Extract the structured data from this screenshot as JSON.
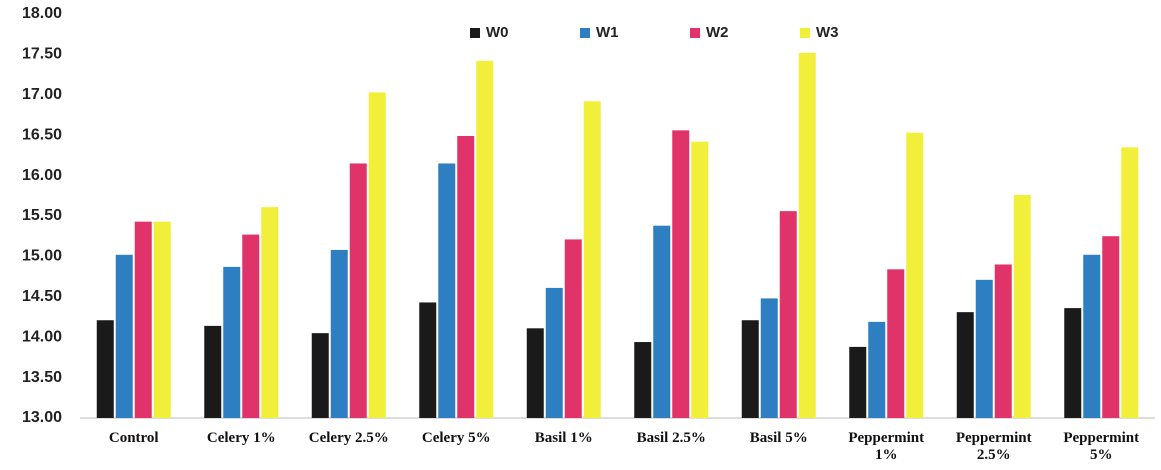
{
  "chart_data": {
    "type": "bar",
    "categories": [
      "Control",
      "Celery 1%",
      "Celery 2.5%",
      "Celery 5%",
      "Basil 1%",
      "Basil 2.5%",
      "Basil 5%",
      "Peppermint 1%",
      "Peppermint 2.5%",
      "Peppermint 5%"
    ],
    "series": [
      {
        "name": "W0",
        "color": "#1a1a1a",
        "values": [
          14.21,
          14.14,
          14.05,
          14.43,
          14.11,
          13.94,
          14.21,
          13.88,
          14.31,
          14.36
        ]
      },
      {
        "name": "W1",
        "color": "#2e7fc1",
        "values": [
          15.02,
          14.87,
          15.08,
          16.15,
          14.61,
          15.38,
          14.48,
          14.19,
          14.71,
          15.02
        ]
      },
      {
        "name": "W2",
        "color": "#e0336a",
        "values": [
          15.43,
          15.27,
          16.15,
          16.49,
          15.21,
          16.56,
          15.56,
          14.84,
          14.9,
          15.25
        ]
      },
      {
        "name": "W3",
        "color": "#f2ef3a",
        "values": [
          15.43,
          15.61,
          17.03,
          17.42,
          16.92,
          16.42,
          17.52,
          16.53,
          15.76,
          16.35
        ]
      }
    ],
    "ylim": [
      13,
      18
    ],
    "yticks": [
      {
        "value": 13,
        "label": "13.00"
      },
      {
        "value": 13.5,
        "label": "13.50"
      },
      {
        "value": 14,
        "label": "14.00"
      },
      {
        "value": 14.5,
        "label": "14.50"
      },
      {
        "value": 15,
        "label": "15.00"
      },
      {
        "value": 15.5,
        "label": "15.50"
      },
      {
        "value": 16,
        "label": "16.00"
      },
      {
        "value": 16.5,
        "label": "16.50"
      },
      {
        "value": 17,
        "label": "17.00"
      },
      {
        "value": 17.5,
        "label": "17.50"
      },
      {
        "value": 18,
        "label": "18.00"
      }
    ],
    "legend": "top",
    "grid": false
  }
}
